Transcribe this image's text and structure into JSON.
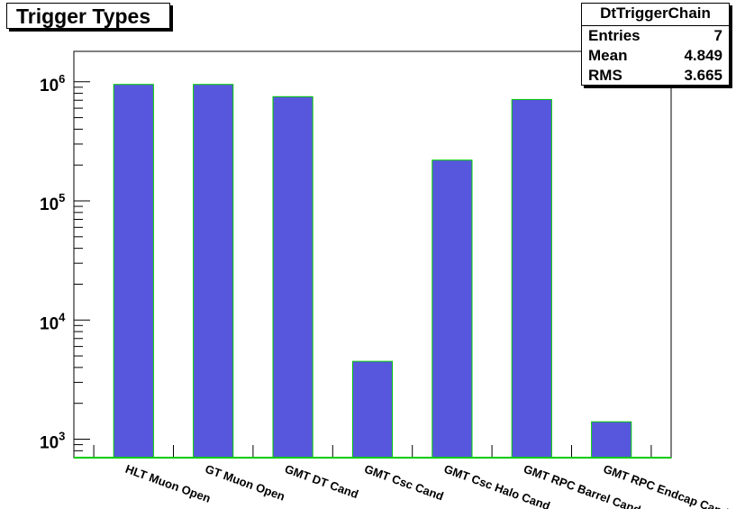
{
  "chart_data": {
    "type": "bar",
    "title": "Trigger Types",
    "categories": [
      "HLT Muon Open",
      "GT Muon Open",
      "GMT DT Cand",
      "GMT Csc Cand",
      "GMT Csc Halo Cand",
      "GMT RPC Barrel Cand",
      "GMT RPC Endcap Cand"
    ],
    "values": [
      950000,
      950000,
      750000,
      4500,
      220000,
      710000,
      1400
    ],
    "yscale": "log",
    "ylim": [
      700,
      1800000
    ],
    "yticks": [
      {
        "base": "10",
        "exp": "3",
        "value": 1000
      },
      {
        "base": "10",
        "exp": "4",
        "value": 10000
      },
      {
        "base": "10",
        "exp": "5",
        "value": 100000
      },
      {
        "base": "10",
        "exp": "6",
        "value": 1000000
      }
    ],
    "xlabel": "",
    "ylabel": "",
    "bar_color": "#5757dd",
    "bar_edge_color": "#00cc00"
  },
  "stats": {
    "name": "DtTriggerChain",
    "rows": [
      {
        "label": "Entries",
        "value": "7"
      },
      {
        "label": "Mean",
        "value": "4.849"
      },
      {
        "label": "RMS",
        "value": "3.665"
      }
    ]
  }
}
